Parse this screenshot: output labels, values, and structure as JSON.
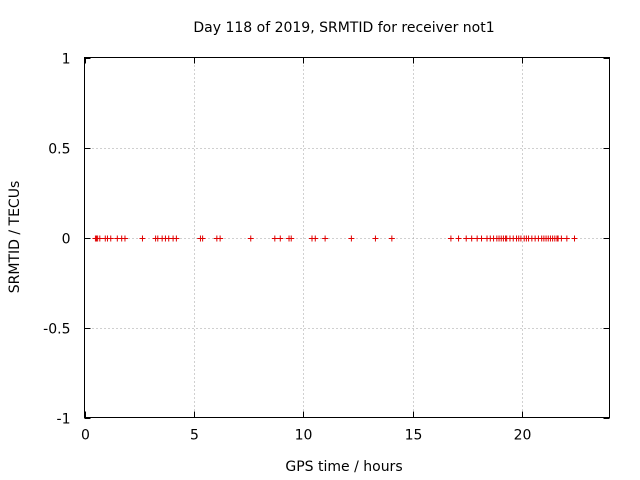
{
  "chart_data": {
    "type": "scatter",
    "title": "Day 118 of 2019, SRMTID for receiver not1",
    "xlabel": "GPS time / hours",
    "ylabel": "SRMTID / TECUs",
    "xlim": [
      0,
      24
    ],
    "ylim": [
      -1,
      1
    ],
    "xticks": [
      0,
      5,
      10,
      15,
      20
    ],
    "xtick_labels": [
      "0",
      "5",
      "10",
      "15",
      "20"
    ],
    "yticks": [
      -1,
      -0.5,
      0,
      0.5,
      1
    ],
    "ytick_labels": [
      "-1",
      "-0.5",
      "0",
      "0.5",
      "1"
    ],
    "grid": true,
    "marker": "+",
    "series_color": "#e00000",
    "series": [
      {
        "name": "SRMTID",
        "x": [
          0.5,
          0.55,
          0.6,
          0.7,
          0.95,
          1.05,
          1.2,
          1.5,
          1.7,
          1.85,
          2.65,
          3.25,
          3.35,
          3.55,
          3.7,
          3.85,
          4.05,
          4.2,
          5.3,
          5.4,
          6.05,
          6.2,
          7.6,
          8.7,
          8.95,
          9.35,
          9.45,
          10.4,
          10.55,
          11.0,
          12.2,
          13.3,
          14.05,
          16.75,
          17.1,
          17.45,
          17.7,
          17.95,
          18.15,
          18.4,
          18.55,
          18.7,
          18.85,
          18.95,
          19.05,
          19.15,
          19.25,
          19.3,
          19.45,
          19.6,
          19.75,
          19.85,
          19.95,
          20.1,
          20.2,
          20.3,
          20.45,
          20.6,
          20.75,
          20.9,
          21.0,
          21.1,
          21.2,
          21.3,
          21.4,
          21.5,
          21.6,
          21.65,
          21.8,
          22.05,
          22.4
        ],
        "y": [
          0,
          0,
          0,
          0,
          0,
          0,
          0,
          0,
          0,
          0,
          0,
          0,
          0,
          0,
          0,
          0,
          0,
          0,
          0,
          0,
          0,
          0,
          0,
          0,
          0,
          0,
          0,
          0,
          0,
          0,
          0,
          0,
          0,
          0,
          0,
          0,
          0,
          0,
          0,
          0,
          0,
          0,
          0,
          0,
          0,
          0,
          0,
          0,
          0,
          0,
          0,
          0,
          0,
          0,
          0,
          0,
          0,
          0,
          0,
          0,
          0,
          0,
          0,
          0,
          0,
          0,
          0,
          0,
          0,
          0,
          0
        ]
      }
    ]
  }
}
